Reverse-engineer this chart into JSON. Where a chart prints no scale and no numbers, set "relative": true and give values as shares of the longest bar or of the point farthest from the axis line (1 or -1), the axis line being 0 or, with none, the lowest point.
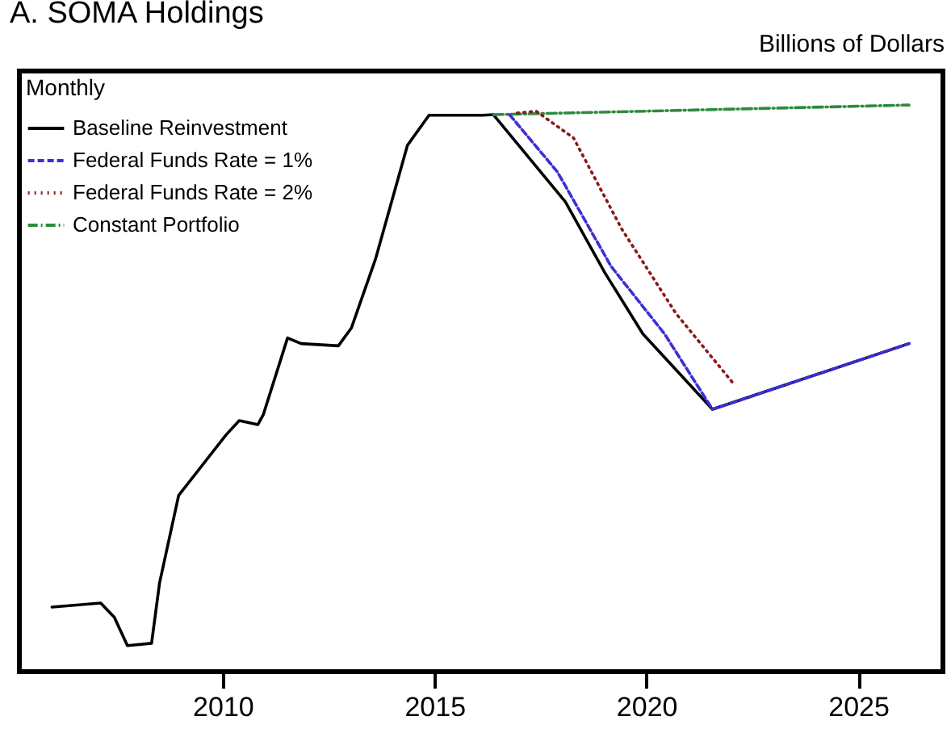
{
  "chart_data": {
    "type": "line",
    "title": "A. SOMA Holdings",
    "ylabel": "Billions of Dollars",
    "legend_title": "Monthly",
    "relative": true,
    "xlim": [
      2005.2,
      2027
    ],
    "xticks": [
      2010,
      2015,
      2020,
      2025
    ],
    "grid": false,
    "legend": "top left",
    "marker": "none",
    "series": [
      {
        "name": "Baseline Reinvestment",
        "color": "#000000",
        "line_style": "solid",
        "x": [
          2005.97,
          2007.12,
          2007.44,
          2007.75,
          2008.32,
          2008.51,
          2008.96,
          2010.08,
          2010.39,
          2010.83,
          2010.96,
          2011.53,
          2011.85,
          2012.73,
          2013.04,
          2013.61,
          2014.36,
          2014.87,
          2016.14,
          2016.39,
          2018.09,
          2019.02,
          2019.92,
          2021.56,
          2026.2
        ],
        "values": [
          0.114,
          0.121,
          0.096,
          0.046,
          0.05,
          0.157,
          0.311,
          0.418,
          0.443,
          0.436,
          0.454,
          0.589,
          0.579,
          0.575,
          0.607,
          0.729,
          0.929,
          0.982,
          0.982,
          0.983,
          0.829,
          0.704,
          0.596,
          0.463,
          0.579
        ]
      },
      {
        "name": "Federal Funds Rate = 1%",
        "color": "#3b2fd6",
        "line_style": "dashed",
        "x": [
          2016.77,
          2017.9,
          2019.17,
          2020.43,
          2021.56,
          2026.2
        ],
        "values": [
          0.983,
          0.882,
          0.715,
          0.596,
          0.463,
          0.579
        ]
      },
      {
        "name": "Federal Funds Rate = 2%",
        "color": "#8b1a1a",
        "line_style": "dotted",
        "x": [
          2016.95,
          2017.4,
          2018.28,
          2019.42,
          2020.7,
          2022.07
        ],
        "values": [
          0.986,
          0.989,
          0.942,
          0.781,
          0.632,
          0.507
        ]
      },
      {
        "name": "Constant Portfolio",
        "color": "#2e8b3e",
        "line_style": "dashdot",
        "x": [
          2016.39,
          2026.2
        ],
        "values": [
          0.983,
          1.0
        ]
      }
    ]
  }
}
